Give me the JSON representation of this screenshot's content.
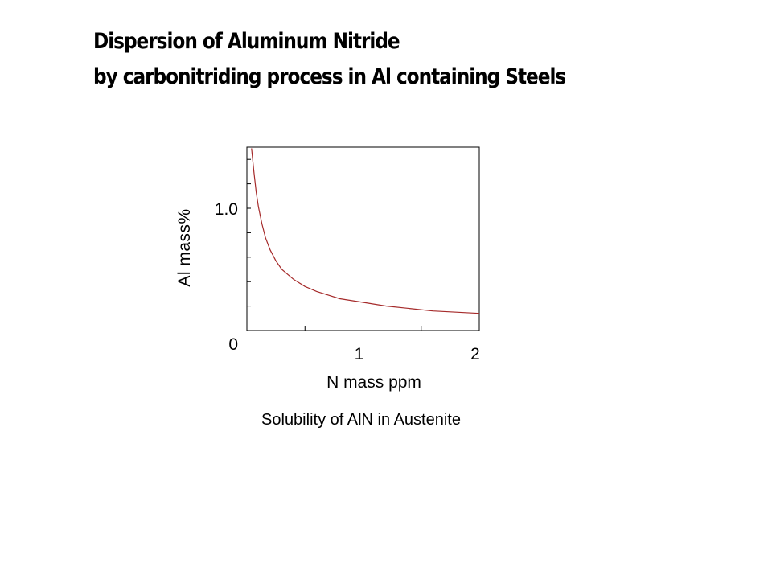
{
  "title": {
    "line1": "Dispersion of Aluminum Nitride",
    "line2": "by carbonitriding process in Al containing Steels"
  },
  "colors": {
    "curve": "#a52a2a",
    "frame": "#000000",
    "text": "#000000"
  },
  "chart_data": {
    "type": "line",
    "xlabel": "N mass ppm",
    "ylabel": "Al mass%",
    "caption": "Solubility of AlN in Austenite",
    "xlim": [
      0,
      2
    ],
    "ylim": [
      0,
      1.5
    ],
    "x_ticks": [
      1,
      2
    ],
    "x_tick_labels": [
      "1",
      "2"
    ],
    "y_ticks": [
      0,
      1.0
    ],
    "y_tick_labels": [
      "0",
      "1.0"
    ],
    "grid": false,
    "series": [
      {
        "x": [
          0.04,
          0.06,
          0.08,
          0.1,
          0.13,
          0.16,
          0.2,
          0.25,
          0.3,
          0.4,
          0.5,
          0.6,
          0.7,
          0.8,
          1.0,
          1.2,
          1.4,
          1.6,
          1.8,
          2.0
        ],
        "y": [
          1.49,
          1.3,
          1.13,
          1.01,
          0.87,
          0.76,
          0.66,
          0.57,
          0.5,
          0.42,
          0.36,
          0.32,
          0.29,
          0.26,
          0.23,
          0.2,
          0.18,
          0.16,
          0.15,
          0.14
        ]
      }
    ]
  }
}
